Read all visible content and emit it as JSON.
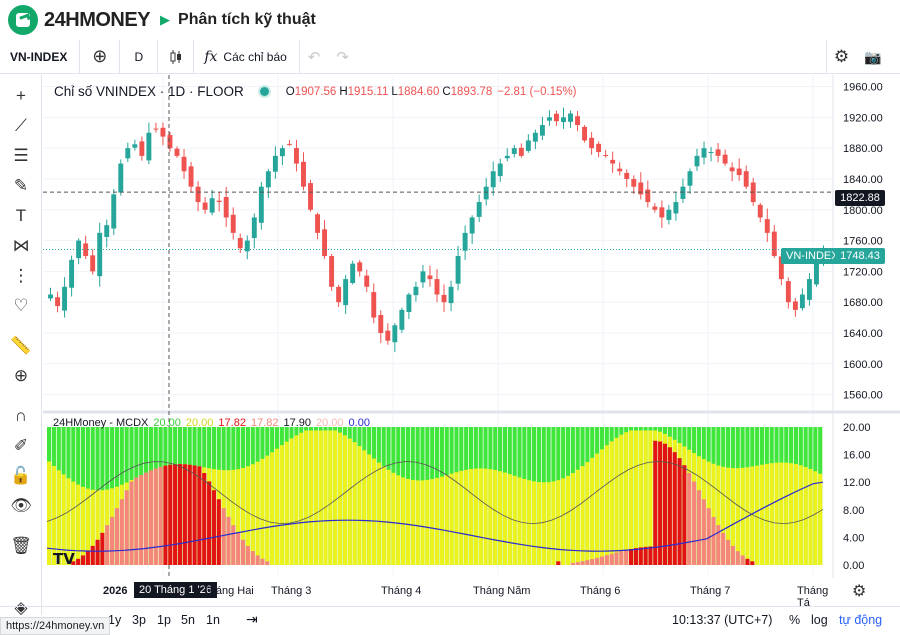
{
  "header": {
    "brand": "24HMONEY",
    "arrow": "▶",
    "title": "Phân tích kỹ thuật"
  },
  "toolbar": {
    "symbol": "VN-INDEX",
    "add_icon": "⊕",
    "interval": "D",
    "candle_icon": "candlestick-icon",
    "indicators_icon": "fx",
    "indicators_label": "Các chỉ báo",
    "undo": "↶",
    "redo": "↷",
    "settings_icon": "⚙",
    "camera_icon": "📷"
  },
  "left_tools": [
    {
      "name": "crosshair-icon",
      "glyph": "+"
    },
    {
      "name": "trend-line-icon",
      "glyph": "⟋"
    },
    {
      "name": "fib-lines-icon",
      "glyph": "☰"
    },
    {
      "name": "brush-icon",
      "glyph": "✎"
    },
    {
      "name": "text-icon",
      "glyph": "T"
    },
    {
      "name": "pattern-icon",
      "glyph": "⋈"
    },
    {
      "name": "forecast-icon",
      "glyph": "⋮"
    },
    {
      "name": "favorite-icon",
      "glyph": "♡"
    },
    {
      "name": "ruler-icon",
      "glyph": "📏"
    },
    {
      "name": "zoom-in-icon",
      "glyph": "⊕"
    },
    {
      "name": "magnet-icon",
      "glyph": "∩"
    },
    {
      "name": "lock-drawing-icon",
      "glyph": "✐"
    },
    {
      "name": "lock-icon",
      "glyph": "🔓"
    },
    {
      "name": "eye-icon",
      "glyph": "👁"
    },
    {
      "name": "trash-icon",
      "glyph": "🗑"
    },
    {
      "name": "layers-icon",
      "glyph": "◈"
    }
  ],
  "legend": {
    "name": "Chỉ số VNINDEX · 1D · FLOOR",
    "o_label": "O",
    "o": "1907.56",
    "h_label": "H",
    "h": "1915.11",
    "l_label": "L",
    "l": "1884.60",
    "c_label": "C",
    "c": "1893.78",
    "change": "−2.81 (−0.15%)"
  },
  "indicator_legend": {
    "name": "24HMoney - MCDX",
    "v1": "20.00",
    "v2": "20.00",
    "v3": "17.82",
    "v4": "17.82",
    "v5": "17.90",
    "v6": "20.00",
    "v7": "0.00"
  },
  "price_axis": {
    "ticks": [
      "1960.00",
      "1920.00",
      "1880.00",
      "1840.00",
      "1800.00",
      "1760.00",
      "1720.00",
      "1680.00",
      "1640.00",
      "1600.00",
      "1560.00"
    ],
    "crosshair_price": "1822.88",
    "last_price": "1748.43",
    "series_tag": "VN-INDEX"
  },
  "indicator_axis": {
    "ticks": [
      "20.00",
      "16.00",
      "12.00",
      "8.00",
      "4.00",
      "0.00"
    ]
  },
  "time_axis": {
    "labels": [
      "2026",
      "Tháng Hai",
      "Tháng 3",
      "Tháng 4",
      "Tháng Năm",
      "Tháng 6",
      "Tháng 7",
      "Tháng Tá"
    ],
    "crosshair_date": "20 Tháng 1 '26"
  },
  "bottom_bar": {
    "ranges": [
      "1y",
      "3p",
      "1p",
      "5n",
      "1n"
    ],
    "goto_icon": "⇥",
    "clock": "10:13:37 (UTC+7)",
    "percent": "%",
    "log": "log",
    "auto": "tự động"
  },
  "url_tip": "https://24hmoney.vn",
  "colors": {
    "up": "#26a69a",
    "down": "#ef5350",
    "green": "#41e63c",
    "yellow": "#eef21c",
    "red": "#e31313",
    "salmon": "#f4877a"
  },
  "chart_data": {
    "type": "candlestick",
    "price_range": [
      1540,
      1975
    ],
    "close_approx": [
      1690,
      1675,
      1700,
      1735,
      1760,
      1740,
      1720,
      1770,
      1780,
      1820,
      1860,
      1880,
      1885,
      1870,
      1900,
      1905,
      1895,
      1880,
      1870,
      1850,
      1830,
      1810,
      1800,
      1815,
      1810,
      1790,
      1770,
      1750,
      1760,
      1790,
      1830,
      1850,
      1870,
      1880,
      1885,
      1860,
      1830,
      1800,
      1770,
      1740,
      1700,
      1680,
      1710,
      1730,
      1720,
      1700,
      1660,
      1640,
      1630,
      1650,
      1670,
      1690,
      1700,
      1720,
      1710,
      1690,
      1680,
      1700,
      1740,
      1770,
      1790,
      1810,
      1830,
      1850,
      1860,
      1870,
      1880,
      1870,
      1890,
      1900,
      1910,
      1920,
      1915,
      1920,
      1925,
      1910,
      1890,
      1880,
      1875,
      1870,
      1860,
      1850,
      1840,
      1830,
      1820,
      1810,
      1800,
      1790,
      1800,
      1810,
      1830,
      1850,
      1870,
      1880,
      1875,
      1870,
      1860,
      1850,
      1845,
      1830,
      1810,
      1790,
      1770,
      1740,
      1710,
      1680,
      1670,
      1690,
      1710,
      1740,
      1748
    ],
    "mcdx_range": [
      0,
      20
    ],
    "blue_line_range": [
      0,
      12
    ],
    "series": [
      {
        "name": "20.00"
      },
      {
        "name": "17.82"
      },
      {
        "name": "17.90"
      },
      {
        "name": "0.00"
      }
    ]
  }
}
